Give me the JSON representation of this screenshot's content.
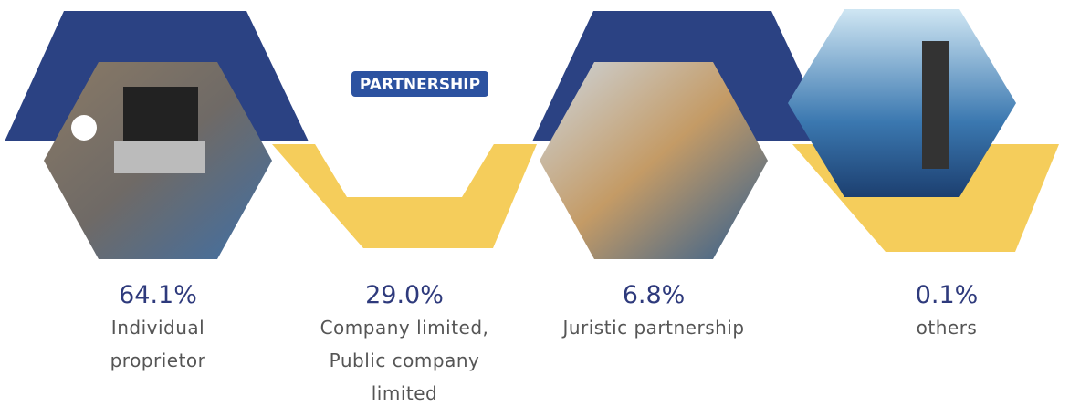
{
  "items": [
    {
      "percent": "64.1%",
      "label": [
        "Individual",
        "proprietor"
      ]
    },
    {
      "percent": "29.0%",
      "label": [
        "Company limited,",
        "Public company",
        "limited"
      ]
    },
    {
      "percent": "6.8%",
      "label": [
        "Juristic partnership"
      ]
    },
    {
      "percent": "0.1%",
      "label": [
        "others"
      ]
    }
  ],
  "images": {
    "partnership_sign": "PARTNERSHIP"
  }
}
